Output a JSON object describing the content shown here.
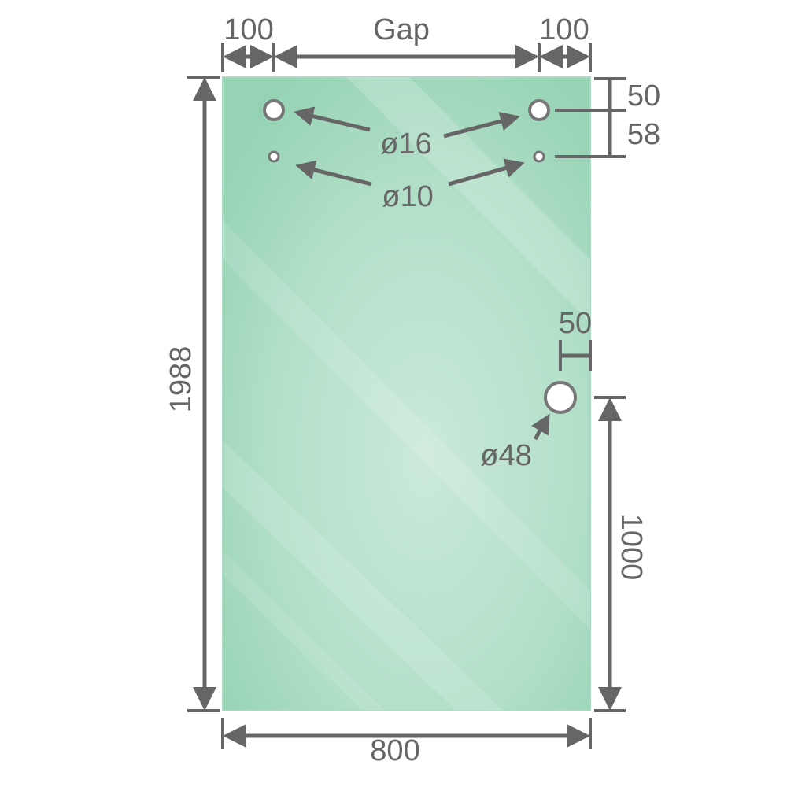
{
  "dimensions": {
    "left_offset": "100",
    "gap": "Gap",
    "right_offset": "100",
    "height": "1988",
    "width": "800",
    "top_to_large_hole": "50",
    "large_to_small_hole": "58",
    "handle_hole_edge_offset": "50",
    "handle_hole_height": "1000"
  },
  "holes": {
    "upper_large": "ø16",
    "upper_small": "ø10",
    "handle": "ø48"
  },
  "colors": {
    "glass": "#96d3b5",
    "glass_light": "#cbe9db",
    "line": "#666666"
  }
}
